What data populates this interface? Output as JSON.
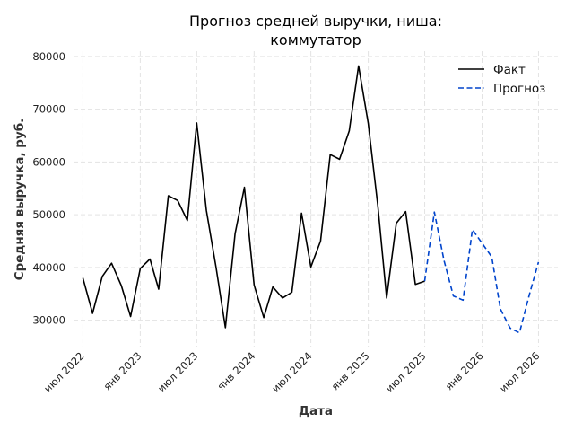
{
  "chart_data": {
    "type": "line",
    "title_lines": [
      "Прогноз средней выручки, ниша:",
      "коммутатор"
    ],
    "xlabel": "Дата",
    "ylabel": "Средняя выручка, руб.",
    "x_ticks": [
      {
        "label": "июл 2022",
        "date": "2022-07-01"
      },
      {
        "label": "янв 2023",
        "date": "2023-01-01"
      },
      {
        "label": "июл 2023",
        "date": "2023-07-01"
      },
      {
        "label": "янв 2024",
        "date": "2024-01-01"
      },
      {
        "label": "июл 2024",
        "date": "2024-07-01"
      },
      {
        "label": "янв 2025",
        "date": "2025-01-01"
      },
      {
        "label": "июл 2025",
        "date": "2025-07-01"
      },
      {
        "label": "янв 2026",
        "date": "2026-01-01"
      },
      {
        "label": "июл 2026",
        "date": "2026-07-01"
      }
    ],
    "y_ticks": [
      "30000",
      "40000",
      "50000",
      "60000",
      "70000",
      "80000"
    ],
    "xlim": [
      "2022-06-01",
      "2026-09-01"
    ],
    "ylim": [
      25000,
      81000
    ],
    "grid": true,
    "legend_position": "top-right",
    "series": [
      {
        "name": "Факт",
        "color": "#000000",
        "style": "solid",
        "points": [
          [
            "2022-07-01",
            38000
          ],
          [
            "2022-08-01",
            31300
          ],
          [
            "2022-09-01",
            38300
          ],
          [
            "2022-10-01",
            40800
          ],
          [
            "2022-11-01",
            36600
          ],
          [
            "2022-12-01",
            30700
          ],
          [
            "2023-01-01",
            39800
          ],
          [
            "2023-02-01",
            41600
          ],
          [
            "2023-03-01",
            35900
          ],
          [
            "2023-04-01",
            53600
          ],
          [
            "2023-05-01",
            52700
          ],
          [
            "2023-06-01",
            48900
          ],
          [
            "2023-07-01",
            67400
          ],
          [
            "2023-08-01",
            50800
          ],
          [
            "2023-09-01",
            40000
          ],
          [
            "2023-10-01",
            28600
          ],
          [
            "2023-11-01",
            46400
          ],
          [
            "2023-12-01",
            55200
          ],
          [
            "2024-01-01",
            36700
          ],
          [
            "2024-02-01",
            30500
          ],
          [
            "2024-03-01",
            36300
          ],
          [
            "2024-04-01",
            34200
          ],
          [
            "2024-05-01",
            35300
          ],
          [
            "2024-06-01",
            50300
          ],
          [
            "2024-07-01",
            40100
          ],
          [
            "2024-08-01",
            45000
          ],
          [
            "2024-09-01",
            61400
          ],
          [
            "2024-10-01",
            60500
          ],
          [
            "2024-11-01",
            65900
          ],
          [
            "2024-12-01",
            78200
          ],
          [
            "2025-01-01",
            67300
          ],
          [
            "2025-02-01",
            51500
          ],
          [
            "2025-03-01",
            34200
          ],
          [
            "2025-04-01",
            48400
          ],
          [
            "2025-05-01",
            50600
          ],
          [
            "2025-06-01",
            36800
          ],
          [
            "2025-07-01",
            37400
          ]
        ]
      },
      {
        "name": "Прогноз",
        "color": "#0044cc",
        "style": "dashed",
        "points": [
          [
            "2025-07-01",
            37400
          ],
          [
            "2025-08-01",
            50500
          ],
          [
            "2025-09-01",
            41300
          ],
          [
            "2025-10-01",
            34600
          ],
          [
            "2025-11-01",
            33800
          ],
          [
            "2025-12-01",
            47200
          ],
          [
            "2026-01-01",
            44600
          ],
          [
            "2026-02-01",
            42000
          ],
          [
            "2026-03-01",
            32100
          ],
          [
            "2026-04-01",
            28500
          ],
          [
            "2026-05-01",
            27600
          ],
          [
            "2026-06-01",
            34700
          ],
          [
            "2026-07-01",
            41000
          ]
        ]
      }
    ]
  }
}
